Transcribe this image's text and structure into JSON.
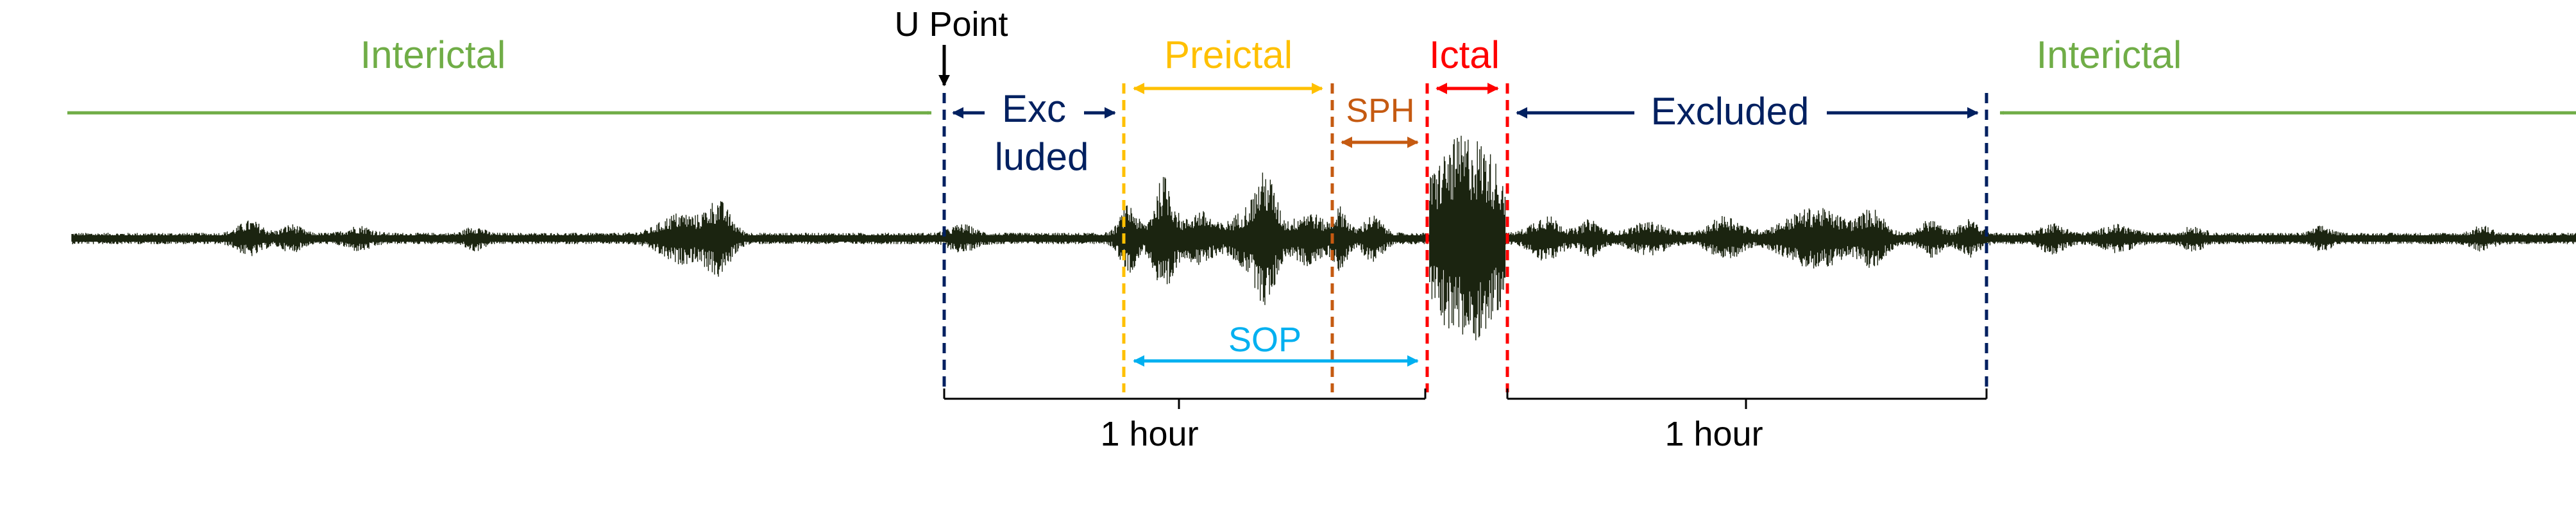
{
  "labels": {
    "interictal_left": "Interictal",
    "interictal_right": "Interictal",
    "u_point": "U Point",
    "excluded_left_line1": "Exc",
    "excluded_left_line2": "luded",
    "preictal": "Preictal",
    "sph": "SPH",
    "ictal": "Ictal",
    "excluded_right": "Excluded",
    "sop": "SOP",
    "duration_left": "1 hour",
    "duration_right": "1 hour"
  },
  "colors": {
    "interictal": "#70ad47",
    "excluded": "#002060",
    "preictal": "#ffc000",
    "sph": "#c55a11",
    "ictal": "#ff0000",
    "sop": "#00b0f0",
    "signal": "#1b2410",
    "text": "#000000",
    "bracket": "#000000"
  }
}
